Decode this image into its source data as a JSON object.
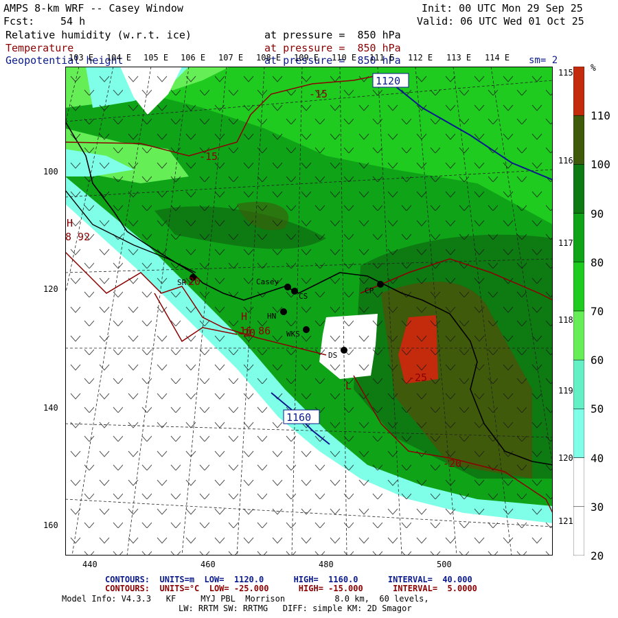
{
  "header": {
    "title": "AMPS 8-km WRF -- Casey Window",
    "init": "Init: 00 UTC Mon 29 Sep 25",
    "fcst_label": "Fcst:",
    "fcst_value": "54 h",
    "valid": "Valid: 06 UTC Wed 01 Oct 25",
    "fields": [
      {
        "name": "Relative humidity (w.r.t. ice)",
        "level": "at pressure =  850 hPa",
        "color": "#000000"
      },
      {
        "name": "Temperature",
        "level": "at pressure =  850 hPa",
        "color": "#8b0000"
      },
      {
        "name": "Geopotential height",
        "level": "at pressure =  850 hPa",
        "color": "#0a1a8c"
      }
    ],
    "smoothing": "sm= 2"
  },
  "map": {
    "top_lon_labels": [
      "103 E",
      "104 E",
      "105 E",
      "106 E",
      "107 E",
      "108 E",
      "109 E",
      "110 E",
      "111 E",
      "112 E",
      "113 E",
      "114 E"
    ],
    "right_lon_labels": [
      "115 E",
      "116 E",
      "117 E",
      "118 E",
      "119 E",
      "120 E",
      "121 E"
    ],
    "left_grid_labels": [
      "100",
      "120",
      "140",
      "160"
    ],
    "bottom_grid_labels": [
      "440",
      "460",
      "480",
      "500"
    ],
    "stations": [
      "SR",
      "Casey",
      "CS",
      "HN",
      "WKS",
      "DS",
      "CP"
    ],
    "height_contour_labels": [
      "1120",
      "1160"
    ],
    "temperature_contour_labels": [
      "-15",
      "-15",
      "-20",
      "-20",
      "-25",
      "-20"
    ],
    "highs_lows": [
      {
        "symbol": "H",
        "value": "8 92"
      },
      {
        "symbol": "H",
        "value": "16 86"
      },
      {
        "symbol": "L",
        "value": ""
      }
    ]
  },
  "colorbar": {
    "unit": "%",
    "ticks": [
      "110",
      "100",
      "90",
      "80",
      "70",
      "60",
      "50",
      "40",
      "30",
      "20"
    ],
    "colors": [
      "#c42a0c",
      "#3e5a0a",
      "#0d7a12",
      "#0fa318",
      "#1fcb1f",
      "#66ee57",
      "#63f0c5",
      "#80ffe8",
      "#ffffff",
      "#ffffff"
    ]
  },
  "footer": {
    "line1": {
      "label": "CONTOURS:",
      "units": "UNITS=m",
      "low": "LOW=  1120.0",
      "high": "HIGH=  1160.0",
      "interval": "INTERVAL=  40.000"
    },
    "line2": {
      "label": "CONTOURS:",
      "units": "UNITS=°C",
      "low": "LOW= -25.000",
      "high": "HIGH= -15.000",
      "interval": "INTERVAL=  5.0000"
    },
    "line3": "Model Info: V4.3.3   KF     MYJ PBL  Morrison          8.0 km,  60 levels,",
    "line4": "LW: RRTM SW: RRTMG   DIFF: simple KM: 2D Smagor"
  }
}
